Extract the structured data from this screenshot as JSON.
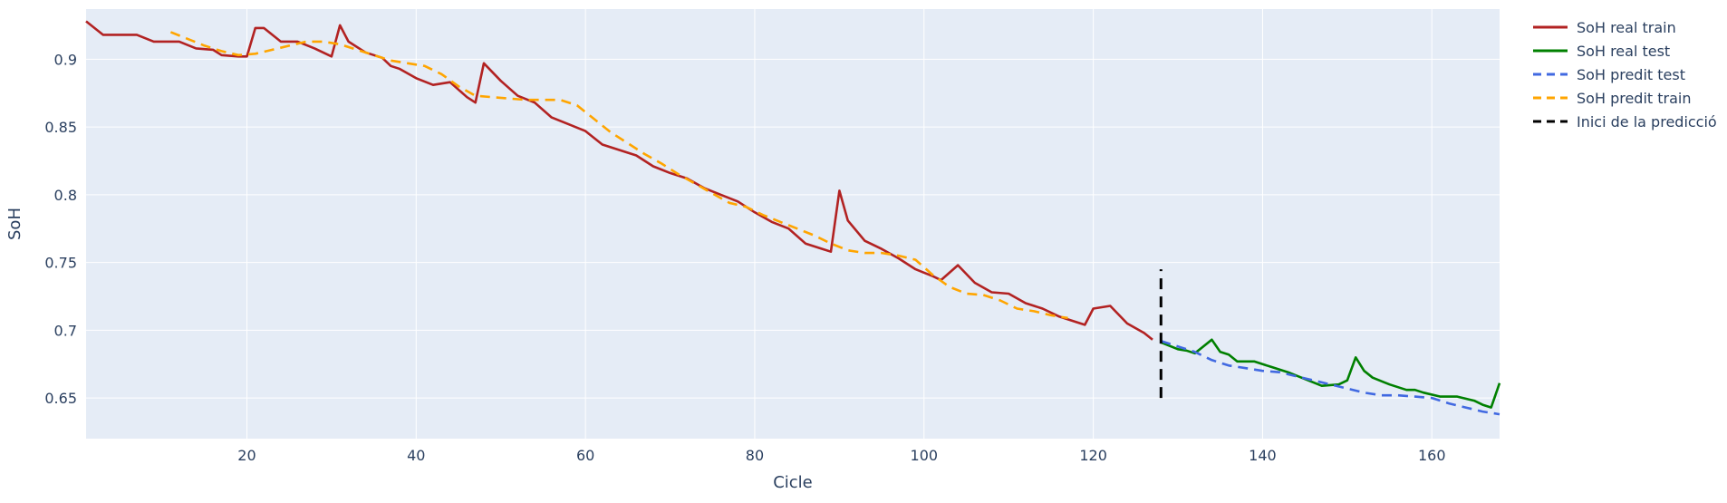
{
  "chart_data": {
    "type": "line",
    "xlabel": "Cicle",
    "ylabel": "SoH",
    "xlim": [
      1,
      168
    ],
    "ylim": [
      0.62,
      0.937
    ],
    "x_ticks": [
      20,
      40,
      60,
      80,
      100,
      120,
      140,
      160
    ],
    "y_ticks": [
      0.65,
      0.7,
      0.75,
      0.8,
      0.85,
      0.9
    ],
    "y_tick_labels": [
      "0.65",
      "0.7",
      "0.75",
      "0.8",
      "0.85",
      "0.9"
    ],
    "grid": true,
    "legend_position": "right",
    "plot_background": "#e5ecf6",
    "series": [
      {
        "name": "SoH real train",
        "color": "#b22222",
        "dash": "solid",
        "x": [
          1,
          3,
          5,
          7,
          9,
          10,
          12,
          14,
          16,
          17,
          19,
          20,
          21,
          22,
          24,
          26,
          28,
          30,
          31,
          32,
          34,
          36,
          37,
          38,
          40,
          42,
          44,
          46,
          47,
          48,
          50,
          52,
          54,
          56,
          58,
          60,
          62,
          64,
          66,
          68,
          70,
          72,
          74,
          76,
          78,
          80,
          82,
          84,
          86,
          88,
          89,
          90,
          91,
          93,
          95,
          97,
          99,
          101,
          102,
          104,
          106,
          108,
          110,
          112,
          114,
          116,
          118,
          119,
          120,
          122,
          124,
          126,
          127
        ],
        "y": [
          0.928,
          0.918,
          0.918,
          0.918,
          0.913,
          0.913,
          0.913,
          0.908,
          0.907,
          0.903,
          0.902,
          0.902,
          0.923,
          0.923,
          0.913,
          0.913,
          0.908,
          0.902,
          0.925,
          0.913,
          0.905,
          0.901,
          0.895,
          0.893,
          0.886,
          0.881,
          0.883,
          0.872,
          0.868,
          0.897,
          0.884,
          0.873,
          0.868,
          0.857,
          0.852,
          0.847,
          0.837,
          0.833,
          0.829,
          0.821,
          0.816,
          0.812,
          0.805,
          0.8,
          0.795,
          0.787,
          0.78,
          0.775,
          0.764,
          0.76,
          0.758,
          0.803,
          0.781,
          0.766,
          0.76,
          0.753,
          0.745,
          0.74,
          0.737,
          0.748,
          0.735,
          0.728,
          0.727,
          0.72,
          0.716,
          0.71,
          0.706,
          0.704,
          0.716,
          0.718,
          0.705,
          0.698,
          0.693
        ]
      },
      {
        "name": "SoH real test",
        "color": "#008000",
        "dash": "solid",
        "x": [
          128,
          130,
          131,
          132,
          134,
          135,
          136,
          137,
          139,
          141,
          143,
          145,
          147,
          149,
          150,
          151,
          152,
          153,
          155,
          157,
          158,
          159,
          161,
          163,
          165,
          166,
          167,
          168
        ],
        "y": [
          0.691,
          0.686,
          0.685,
          0.683,
          0.693,
          0.684,
          0.682,
          0.677,
          0.677,
          0.673,
          0.669,
          0.664,
          0.659,
          0.66,
          0.663,
          0.68,
          0.67,
          0.665,
          0.66,
          0.656,
          0.656,
          0.654,
          0.651,
          0.651,
          0.648,
          0.645,
          0.643,
          0.661
        ]
      },
      {
        "name": "SoH predit test",
        "color": "#4169e1",
        "dash": "dashed",
        "x": [
          128,
          132,
          134,
          136,
          138,
          140,
          142,
          144,
          146,
          148,
          150,
          152,
          154,
          156,
          158,
          160,
          162,
          164,
          166,
          168
        ],
        "y": [
          0.692,
          0.684,
          0.678,
          0.674,
          0.672,
          0.67,
          0.669,
          0.666,
          0.663,
          0.66,
          0.657,
          0.654,
          0.652,
          0.652,
          0.651,
          0.65,
          0.646,
          0.643,
          0.64,
          0.638
        ]
      },
      {
        "name": "SoH predit train",
        "color": "#ffa500",
        "dash": "dashed",
        "x": [
          11,
          13,
          15,
          17,
          19,
          21,
          23,
          25,
          27,
          29,
          31,
          33,
          35,
          37,
          39,
          41,
          43,
          45,
          47,
          49,
          51,
          53,
          55,
          57,
          59,
          61,
          63,
          65,
          67,
          69,
          71,
          73,
          75,
          77,
          79,
          81,
          83,
          85,
          87,
          89,
          91,
          93,
          95,
          97,
          99,
          101,
          103,
          105,
          107,
          109,
          111,
          113,
          115,
          117
        ],
        "y": [
          0.92,
          0.915,
          0.91,
          0.906,
          0.903,
          0.904,
          0.907,
          0.91,
          0.913,
          0.913,
          0.911,
          0.907,
          0.903,
          0.899,
          0.897,
          0.895,
          0.889,
          0.88,
          0.873,
          0.872,
          0.871,
          0.87,
          0.87,
          0.87,
          0.866,
          0.856,
          0.846,
          0.838,
          0.83,
          0.823,
          0.815,
          0.808,
          0.801,
          0.794,
          0.791,
          0.785,
          0.78,
          0.775,
          0.77,
          0.764,
          0.759,
          0.757,
          0.757,
          0.755,
          0.752,
          0.741,
          0.732,
          0.727,
          0.726,
          0.722,
          0.716,
          0.714,
          0.711,
          0.709
        ]
      },
      {
        "name": "Inici de la predicció",
        "color": "#000000",
        "dash": "dashed",
        "x": [
          128,
          128
        ],
        "y": [
          0.65,
          0.745
        ]
      }
    ]
  }
}
